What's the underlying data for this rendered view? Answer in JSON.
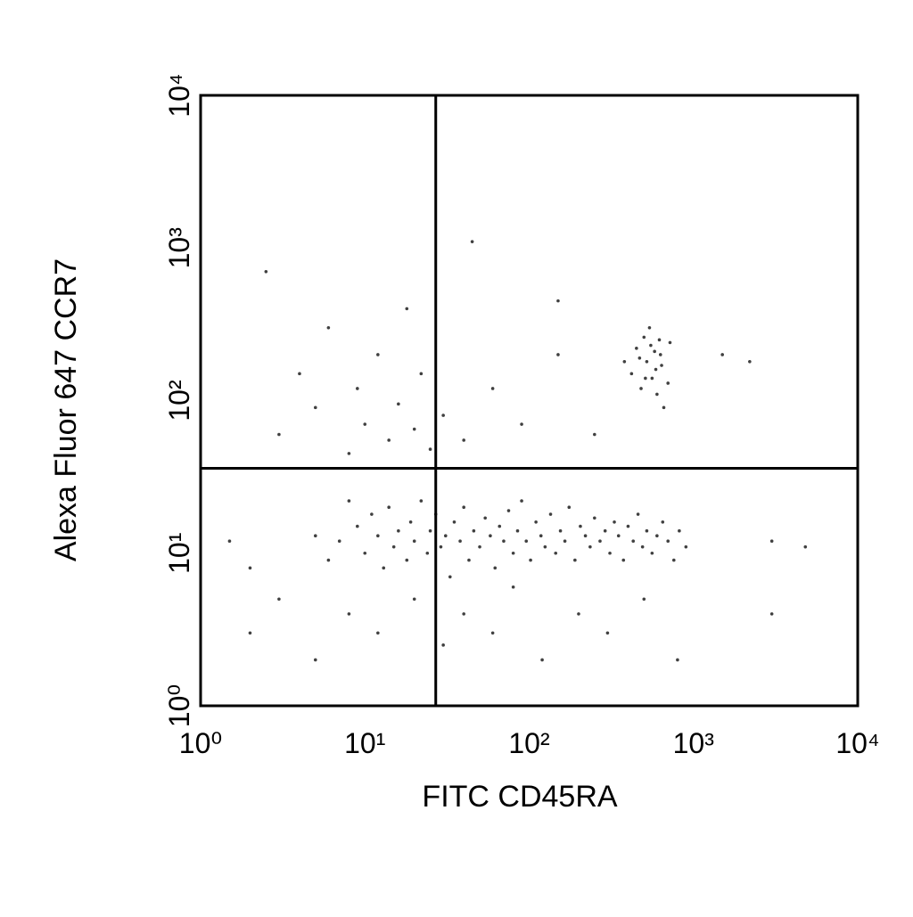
{
  "chart_data": {
    "type": "scatter",
    "x_label": "FITC CD45RA",
    "y_label": "Alexa Fluor 647 CCR7",
    "log_x": true,
    "log_y": true,
    "color": "#000000",
    "xlim": [
      1,
      10000
    ],
    "ylim": [
      1,
      10000
    ],
    "xticks": [
      {
        "value": 1,
        "label": "10⁰"
      },
      {
        "value": 10,
        "label": "10¹"
      },
      {
        "value": 100,
        "label": "10²"
      },
      {
        "value": 1000,
        "label": "10³"
      },
      {
        "value": 10000,
        "label": "10⁴"
      }
    ],
    "yticks": [
      {
        "value": 1,
        "label": "10⁰"
      },
      {
        "value": 10,
        "label": "10¹"
      },
      {
        "value": 100,
        "label": "10²"
      },
      {
        "value": 1000,
        "label": "10³"
      },
      {
        "value": 10000,
        "label": "10⁴"
      }
    ],
    "gates": {
      "x": 27,
      "y": 36
    },
    "x": [
      7,
      9,
      10,
      11,
      12,
      13,
      14,
      15,
      16,
      18,
      19,
      20,
      22,
      24,
      25,
      27,
      29,
      31,
      33,
      35,
      38,
      40,
      43,
      46,
      50,
      54,
      58,
      62,
      66,
      70,
      75,
      80,
      85,
      90,
      96,
      102,
      110,
      118,
      125,
      135,
      145,
      155,
      165,
      175,
      190,
      205,
      220,
      235,
      250,
      270,
      290,
      310,
      330,
      350,
      375,
      400,
      430,
      460,
      490,
      520,
      560,
      600,
      650,
      700,
      760,
      820,
      900,
      5,
      6,
      8,
      420,
      450,
      480,
      500,
      520,
      540,
      560,
      580,
      600,
      620,
      640,
      660,
      470,
      510,
      550,
      590,
      630,
      700,
      380,
      720,
      3,
      4,
      5,
      6,
      8,
      9,
      10,
      12,
      14,
      16,
      18,
      20,
      22,
      25,
      30,
      40,
      60,
      90,
      150,
      250,
      2.5,
      45,
      150,
      1500,
      2200,
      2,
      3,
      5,
      8,
      12,
      20,
      30,
      40,
      60,
      80,
      120,
      200,
      300,
      500,
      800,
      3000,
      4800,
      3000,
      1.5,
      2
    ],
    "values": [
      12,
      15,
      10,
      18,
      13,
      8,
      20,
      11,
      14,
      9,
      16,
      12,
      22,
      10,
      14,
      18,
      11,
      13,
      7,
      16,
      12,
      20,
      9,
      14,
      11,
      17,
      13,
      8,
      15,
      12,
      19,
      10,
      14,
      22,
      12,
      9,
      16,
      13,
      11,
      18,
      10,
      14,
      12,
      20,
      9,
      15,
      13,
      11,
      17,
      12,
      14,
      10,
      16,
      13,
      9,
      15,
      12,
      18,
      11,
      14,
      10,
      13,
      16,
      12,
      9,
      14,
      11,
      13,
      9,
      22,
      150,
      220,
      120,
      260,
      180,
      300,
      140,
      210,
      110,
      250,
      170,
      90,
      190,
      140,
      230,
      160,
      200,
      130,
      180,
      240,
      60,
      150,
      90,
      300,
      45,
      120,
      70,
      200,
      55,
      95,
      400,
      65,
      150,
      48,
      80,
      55,
      120,
      70,
      200,
      60,
      700,
      1100,
      450,
      200,
      180,
      3,
      5,
      2,
      4,
      3,
      5,
      2.5,
      4,
      3,
      6,
      2,
      4,
      3,
      5,
      2,
      4,
      11,
      12,
      12,
      8
    ]
  }
}
